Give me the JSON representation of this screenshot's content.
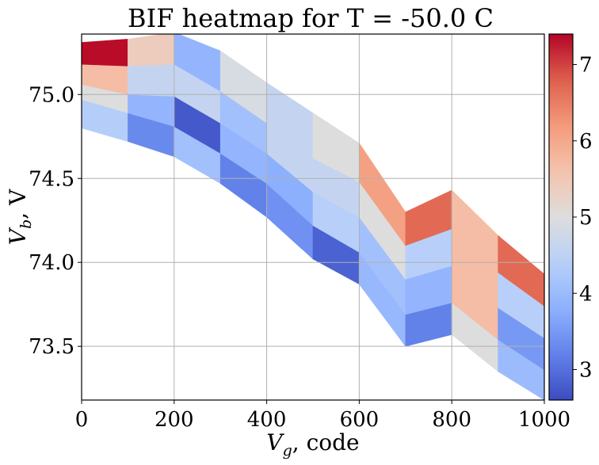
{
  "chart_data": {
    "type": "heatmap",
    "title": "BIF heatmap for T = -50.0 C",
    "xlabel_var": "V",
    "xlabel_sub": "g",
    "xlabel_rest": ", code",
    "ylabel_var": "V",
    "ylabel_sub": "b",
    "ylabel_rest": ", V",
    "xlim": [
      0,
      1000
    ],
    "ylim": [
      73.18,
      75.36
    ],
    "xticks": [
      0,
      200,
      400,
      600,
      800,
      1000
    ],
    "xtick_labels": [
      "0",
      "200",
      "400",
      "600",
      "800",
      "1000"
    ],
    "yticks": [
      73.5,
      74.0,
      74.5,
      75.0
    ],
    "ytick_labels": [
      "73.5",
      "74.0",
      "74.5",
      "75.0"
    ],
    "grid": true,
    "colormap": "coolwarm",
    "colorbar": {
      "range": [
        2.6,
        7.4
      ],
      "ticks": [
        3,
        4,
        5,
        6,
        7
      ],
      "tick_labels": [
        "3",
        "4",
        "5",
        "6",
        "7"
      ]
    },
    "x_edges": [
      0,
      100,
      200,
      300,
      400,
      500,
      600,
      700,
      800,
      900,
      1000
    ],
    "row_edges": [
      [
        74.8,
        74.72,
        74.63,
        74.47,
        74.27,
        74.02,
        73.87,
        73.5,
        73.57,
        73.35,
        73.18
      ],
      [
        74.97,
        74.89,
        74.81,
        74.65,
        74.47,
        74.22,
        74.06,
        73.69,
        73.76,
        73.54,
        73.36
      ],
      [
        75.06,
        75.0,
        74.99,
        74.83,
        74.65,
        74.42,
        74.27,
        73.9,
        73.98,
        73.73,
        73.55
      ],
      [
        75.18,
        75.17,
        75.18,
        75.02,
        74.83,
        74.62,
        74.48,
        74.1,
        74.2,
        73.94,
        73.74
      ],
      [
        75.31,
        75.33,
        75.37,
        75.26,
        75.07,
        74.89,
        74.71,
        74.3,
        74.43,
        74.16,
        73.93
      ]
    ],
    "values": [
      [
        4.35,
        3.3,
        4.1,
        3.2,
        3.4,
        2.85,
        3.95,
        3.2,
        5.0,
        4.0
      ],
      [
        5.0,
        3.9,
        2.75,
        3.9,
        3.8,
        4.4,
        4.1,
        3.9,
        5.7,
        3.5
      ],
      [
        5.7,
        4.6,
        4.6,
        4.1,
        4.6,
        4.6,
        5.0,
        4.4,
        5.7,
        4.4
      ],
      [
        7.35,
        5.4,
        3.9,
        4.9,
        4.6,
        5.0,
        6.1,
        6.7,
        5.7,
        6.7
      ]
    ]
  }
}
